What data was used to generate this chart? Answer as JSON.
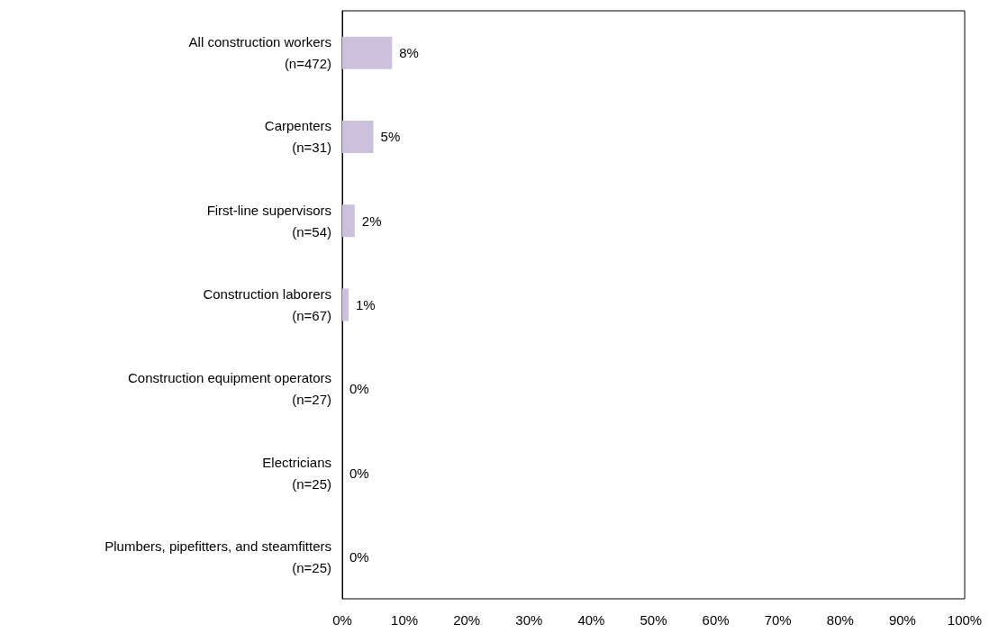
{
  "chart_data": {
    "type": "bar",
    "orientation": "horizontal",
    "categories": [
      "All construction workers\n(n=472)",
      "Carpenters\n(n=31)",
      "First-line supervisors\n(n=54)",
      "Construction laborers\n(n=67)",
      "Construction equipment operators\n(n=27)",
      "Electricians\n(n=25)",
      "Plumbers, pipefitters, and steamfitters\n(n=25)"
    ],
    "values": [
      8,
      5,
      2,
      1,
      0,
      0,
      0
    ],
    "value_labels": [
      "8%",
      "5%",
      "2%",
      "1%",
      "0%",
      "0%",
      "0%"
    ],
    "color": "#ccc1dc",
    "xlim": [
      0,
      100
    ],
    "xticks": [
      {
        "value": 0,
        "label": "0%"
      },
      {
        "value": 10,
        "label": "10%"
      },
      {
        "value": 20,
        "label": "20%"
      },
      {
        "value": 30,
        "label": "30%"
      },
      {
        "value": 40,
        "label": "40%"
      },
      {
        "value": 50,
        "label": "50%"
      },
      {
        "value": 60,
        "label": "60%"
      },
      {
        "value": 70,
        "label": "70%"
      },
      {
        "value": 80,
        "label": "80%"
      },
      {
        "value": 90,
        "label": "90%"
      },
      {
        "value": 100,
        "label": "100%"
      }
    ],
    "grid": false
  }
}
